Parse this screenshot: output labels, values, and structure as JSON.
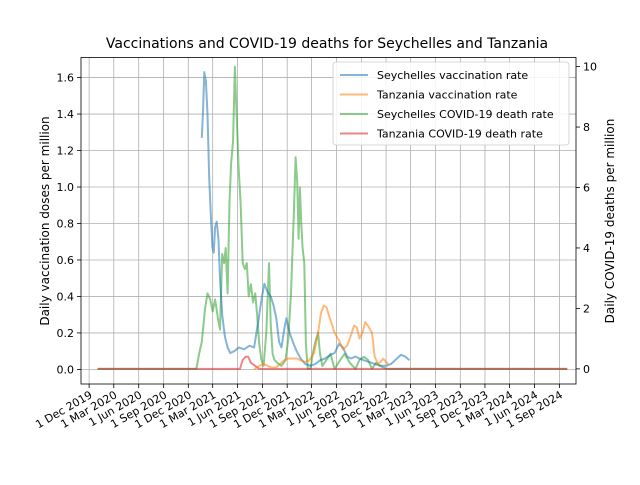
{
  "chart_data": {
    "type": "line",
    "title": "Vaccinations and COVID-19 deaths for Seychelles and Tanzania",
    "xlabel": "",
    "ylabel_left": "Daily vaccination doses per million",
    "ylabel_right": "Daily COVID-19 deaths per million",
    "x_ticks": [
      "1 Dec 2019",
      "1 Mar 2020",
      "1 Jun 2020",
      "1 Sep 2020",
      "1 Dec 2020",
      "1 Mar 2021",
      "1 Jun 2021",
      "1 Sep 2021",
      "1 Dec 2021",
      "1 Mar 2022",
      "1 Jun 2022",
      "1 Sep 2022",
      "1 Dec 2022",
      "1 Mar 2023",
      "1 Jun 2023",
      "1 Sep 2023",
      "1 Dec 2023",
      "1 Mar 2024",
      "1 Jun 2024",
      "1 Sep 2024"
    ],
    "xlim": [
      "2019-11-01",
      "2024-11-01"
    ],
    "ylim_left": [
      -0.08,
      1.71
    ],
    "ylim_right": [
      -0.5,
      10.3
    ],
    "y_ticks_left": [
      "0.0",
      "0.2",
      "0.4",
      "0.6",
      "0.8",
      "1.0",
      "1.2",
      "1.4",
      "1.6"
    ],
    "y_ticks_right": [
      "0",
      "2",
      "4",
      "6",
      "8",
      "10"
    ],
    "grid": true,
    "legend_position": "top-right",
    "series": [
      {
        "name": "Seychelles vaccination rate",
        "axis": "left",
        "color": "#1f77b4",
        "points": [
          [
            "2021-01-20",
            1.27
          ],
          [
            "2021-01-24",
            1.4
          ],
          [
            "2021-01-29",
            1.63
          ],
          [
            "2021-02-04",
            1.58
          ],
          [
            "2021-02-10",
            1.4
          ],
          [
            "2021-02-16",
            1.05
          ],
          [
            "2021-02-22",
            0.85
          ],
          [
            "2021-02-28",
            0.67
          ],
          [
            "2021-03-05",
            0.64
          ],
          [
            "2021-03-10",
            0.78
          ],
          [
            "2021-03-16",
            0.81
          ],
          [
            "2021-03-22",
            0.72
          ],
          [
            "2021-03-28",
            0.5
          ],
          [
            "2021-04-05",
            0.3
          ],
          [
            "2021-04-15",
            0.18
          ],
          [
            "2021-04-25",
            0.12
          ],
          [
            "2021-05-05",
            0.09
          ],
          [
            "2021-05-20",
            0.1
          ],
          [
            "2021-06-05",
            0.12
          ],
          [
            "2021-06-25",
            0.11
          ],
          [
            "2021-07-15",
            0.13
          ],
          [
            "2021-08-01",
            0.12
          ],
          [
            "2021-08-15",
            0.25
          ],
          [
            "2021-08-30",
            0.4
          ],
          [
            "2021-09-08",
            0.47
          ],
          [
            "2021-09-18",
            0.43
          ],
          [
            "2021-10-01",
            0.4
          ],
          [
            "2021-10-12",
            0.35
          ],
          [
            "2021-10-22",
            0.28
          ],
          [
            "2021-11-01",
            0.15
          ],
          [
            "2021-11-10",
            0.12
          ],
          [
            "2021-11-20",
            0.22
          ],
          [
            "2021-11-28",
            0.28
          ],
          [
            "2021-12-10",
            0.2
          ],
          [
            "2021-12-22",
            0.15
          ],
          [
            "2022-01-05",
            0.1
          ],
          [
            "2022-01-20",
            0.06
          ],
          [
            "2022-02-05",
            0.03
          ],
          [
            "2022-02-25",
            0.02
          ],
          [
            "2022-03-15",
            0.03
          ],
          [
            "2022-04-01",
            0.05
          ],
          [
            "2022-04-20",
            0.06
          ],
          [
            "2022-05-10",
            0.08
          ],
          [
            "2022-05-25",
            0.09
          ],
          [
            "2022-06-10",
            0.14
          ],
          [
            "2022-06-25",
            0.12
          ],
          [
            "2022-07-10",
            0.07
          ],
          [
            "2022-07-25",
            0.06
          ],
          [
            "2022-08-10",
            0.07
          ],
          [
            "2022-08-25",
            0.06
          ],
          [
            "2022-09-10",
            0.05
          ],
          [
            "2022-10-01",
            0.04
          ],
          [
            "2022-10-20",
            0.03
          ],
          [
            "2022-11-10",
            0.02
          ],
          [
            "2022-12-01",
            0.02
          ],
          [
            "2022-12-20",
            0.03
          ],
          [
            "2023-01-10",
            0.06
          ],
          [
            "2023-01-25",
            0.08
          ],
          [
            "2023-02-10",
            0.07
          ],
          [
            "2023-02-25",
            0.05
          ]
        ]
      },
      {
        "name": "Tanzania vaccination rate",
        "axis": "left",
        "color": "#ff7f0e",
        "points": [
          [
            "2021-08-01",
            0.0
          ],
          [
            "2021-08-20",
            0.02
          ],
          [
            "2021-09-05",
            0.03
          ],
          [
            "2021-09-20",
            0.02
          ],
          [
            "2021-10-05",
            0.01
          ],
          [
            "2021-10-20",
            0.01
          ],
          [
            "2021-11-05",
            0.03
          ],
          [
            "2021-11-20",
            0.05
          ],
          [
            "2021-12-05",
            0.06
          ],
          [
            "2021-12-20",
            0.06
          ],
          [
            "2022-01-05",
            0.06
          ],
          [
            "2022-01-20",
            0.05
          ],
          [
            "2022-02-05",
            0.04
          ],
          [
            "2022-02-20",
            0.05
          ],
          [
            "2022-03-10",
            0.09
          ],
          [
            "2022-03-25",
            0.2
          ],
          [
            "2022-04-05",
            0.31
          ],
          [
            "2022-04-15",
            0.35
          ],
          [
            "2022-04-25",
            0.34
          ],
          [
            "2022-05-10",
            0.27
          ],
          [
            "2022-05-25",
            0.2
          ],
          [
            "2022-06-10",
            0.16
          ],
          [
            "2022-06-25",
            0.11
          ],
          [
            "2022-07-10",
            0.13
          ],
          [
            "2022-07-25",
            0.19
          ],
          [
            "2022-08-05",
            0.24
          ],
          [
            "2022-08-15",
            0.23
          ],
          [
            "2022-08-25",
            0.17
          ],
          [
            "2022-09-05",
            0.2
          ],
          [
            "2022-09-15",
            0.26
          ],
          [
            "2022-09-25",
            0.24
          ],
          [
            "2022-10-10",
            0.2
          ],
          [
            "2022-10-20",
            0.07
          ],
          [
            "2022-11-01",
            0.03
          ],
          [
            "2022-11-10",
            0.04
          ],
          [
            "2022-11-20",
            0.06
          ],
          [
            "2022-12-01",
            0.04
          ],
          [
            "2022-12-10",
            0.03
          ]
        ]
      },
      {
        "name": "Seychelles COVID-19 death rate",
        "axis": "right",
        "color": "#2ca02c",
        "points": [
          [
            "2020-01-01",
            0.0
          ],
          [
            "2020-12-31",
            0.0
          ],
          [
            "2021-01-10",
            0.5
          ],
          [
            "2021-01-20",
            0.9
          ],
          [
            "2021-02-01",
            2.0
          ],
          [
            "2021-02-10",
            2.5
          ],
          [
            "2021-02-20",
            2.3
          ],
          [
            "2021-03-01",
            1.9
          ],
          [
            "2021-03-10",
            2.3
          ],
          [
            "2021-03-20",
            1.7
          ],
          [
            "2021-03-28",
            1.3
          ],
          [
            "2021-04-05",
            3.8
          ],
          [
            "2021-04-12",
            3.5
          ],
          [
            "2021-04-18",
            4.0
          ],
          [
            "2021-04-25",
            2.5
          ],
          [
            "2021-05-02",
            5.5
          ],
          [
            "2021-05-08",
            6.8
          ],
          [
            "2021-05-15",
            7.5
          ],
          [
            "2021-05-22",
            10.0
          ],
          [
            "2021-05-28",
            8.5
          ],
          [
            "2021-06-05",
            6.6
          ],
          [
            "2021-06-12",
            5.5
          ],
          [
            "2021-06-20",
            3.5
          ],
          [
            "2021-06-28",
            3.3
          ],
          [
            "2021-07-05",
            3.5
          ],
          [
            "2021-07-12",
            2.4
          ],
          [
            "2021-07-20",
            2.8
          ],
          [
            "2021-07-28",
            2.2
          ],
          [
            "2021-08-05",
            2.5
          ],
          [
            "2021-08-12",
            1.8
          ],
          [
            "2021-08-20",
            0.8
          ],
          [
            "2021-08-28",
            0.3
          ],
          [
            "2021-09-05",
            0.1
          ],
          [
            "2021-09-15",
            1.2
          ],
          [
            "2021-09-25",
            3.5
          ],
          [
            "2021-10-01",
            1.5
          ],
          [
            "2021-10-08",
            0.5
          ],
          [
            "2021-10-15",
            0.3
          ],
          [
            "2021-10-25",
            0.2
          ],
          [
            "2021-11-10",
            0.1
          ],
          [
            "2021-11-25",
            0.3
          ],
          [
            "2021-12-05",
            1.0
          ],
          [
            "2021-12-15",
            2.5
          ],
          [
            "2021-12-25",
            5.0
          ],
          [
            "2022-01-01",
            7.0
          ],
          [
            "2022-01-07",
            6.2
          ],
          [
            "2022-01-12",
            4.3
          ],
          [
            "2022-01-17",
            6.0
          ],
          [
            "2022-01-22",
            4.8
          ],
          [
            "2022-01-27",
            4.0
          ],
          [
            "2022-02-02",
            3.5
          ],
          [
            "2022-02-08",
            0.8
          ],
          [
            "2022-02-15",
            0.0
          ],
          [
            "2022-02-25",
            0.0
          ],
          [
            "2022-03-05",
            0.5
          ],
          [
            "2022-03-15",
            0.9
          ],
          [
            "2022-03-25",
            1.2
          ],
          [
            "2022-04-01",
            0.5
          ],
          [
            "2022-04-10",
            0.1
          ],
          [
            "2022-04-25",
            0.3
          ],
          [
            "2022-05-10",
            0.5
          ],
          [
            "2022-05-25",
            0.0
          ],
          [
            "2022-06-15",
            0.3
          ],
          [
            "2022-07-01",
            0.5
          ],
          [
            "2022-07-20",
            0.2
          ],
          [
            "2022-08-10",
            0.0
          ],
          [
            "2022-08-25",
            0.3
          ],
          [
            "2022-09-10",
            0.4
          ],
          [
            "2022-09-25",
            0.3
          ],
          [
            "2022-10-10",
            0.0
          ],
          [
            "2022-10-25",
            0.2
          ],
          [
            "2022-11-10",
            0.1
          ],
          [
            "2022-12-01",
            0.0
          ],
          [
            "2022-12-20",
            0.0
          ],
          [
            "2023-01-31",
            0.0
          ],
          [
            "2024-09-30",
            0.0
          ]
        ]
      },
      {
        "name": "Tanzania COVID-19 death rate",
        "axis": "right",
        "color": "#d62728",
        "points": [
          [
            "2020-01-01",
            0.0
          ],
          [
            "2021-06-10",
            0.0
          ],
          [
            "2021-06-20",
            0.3
          ],
          [
            "2021-07-01",
            0.4
          ],
          [
            "2021-07-10",
            0.4
          ],
          [
            "2021-07-20",
            0.2
          ],
          [
            "2021-08-05",
            0.1
          ],
          [
            "2021-08-20",
            0.0
          ],
          [
            "2024-09-30",
            0.0
          ]
        ]
      }
    ]
  }
}
